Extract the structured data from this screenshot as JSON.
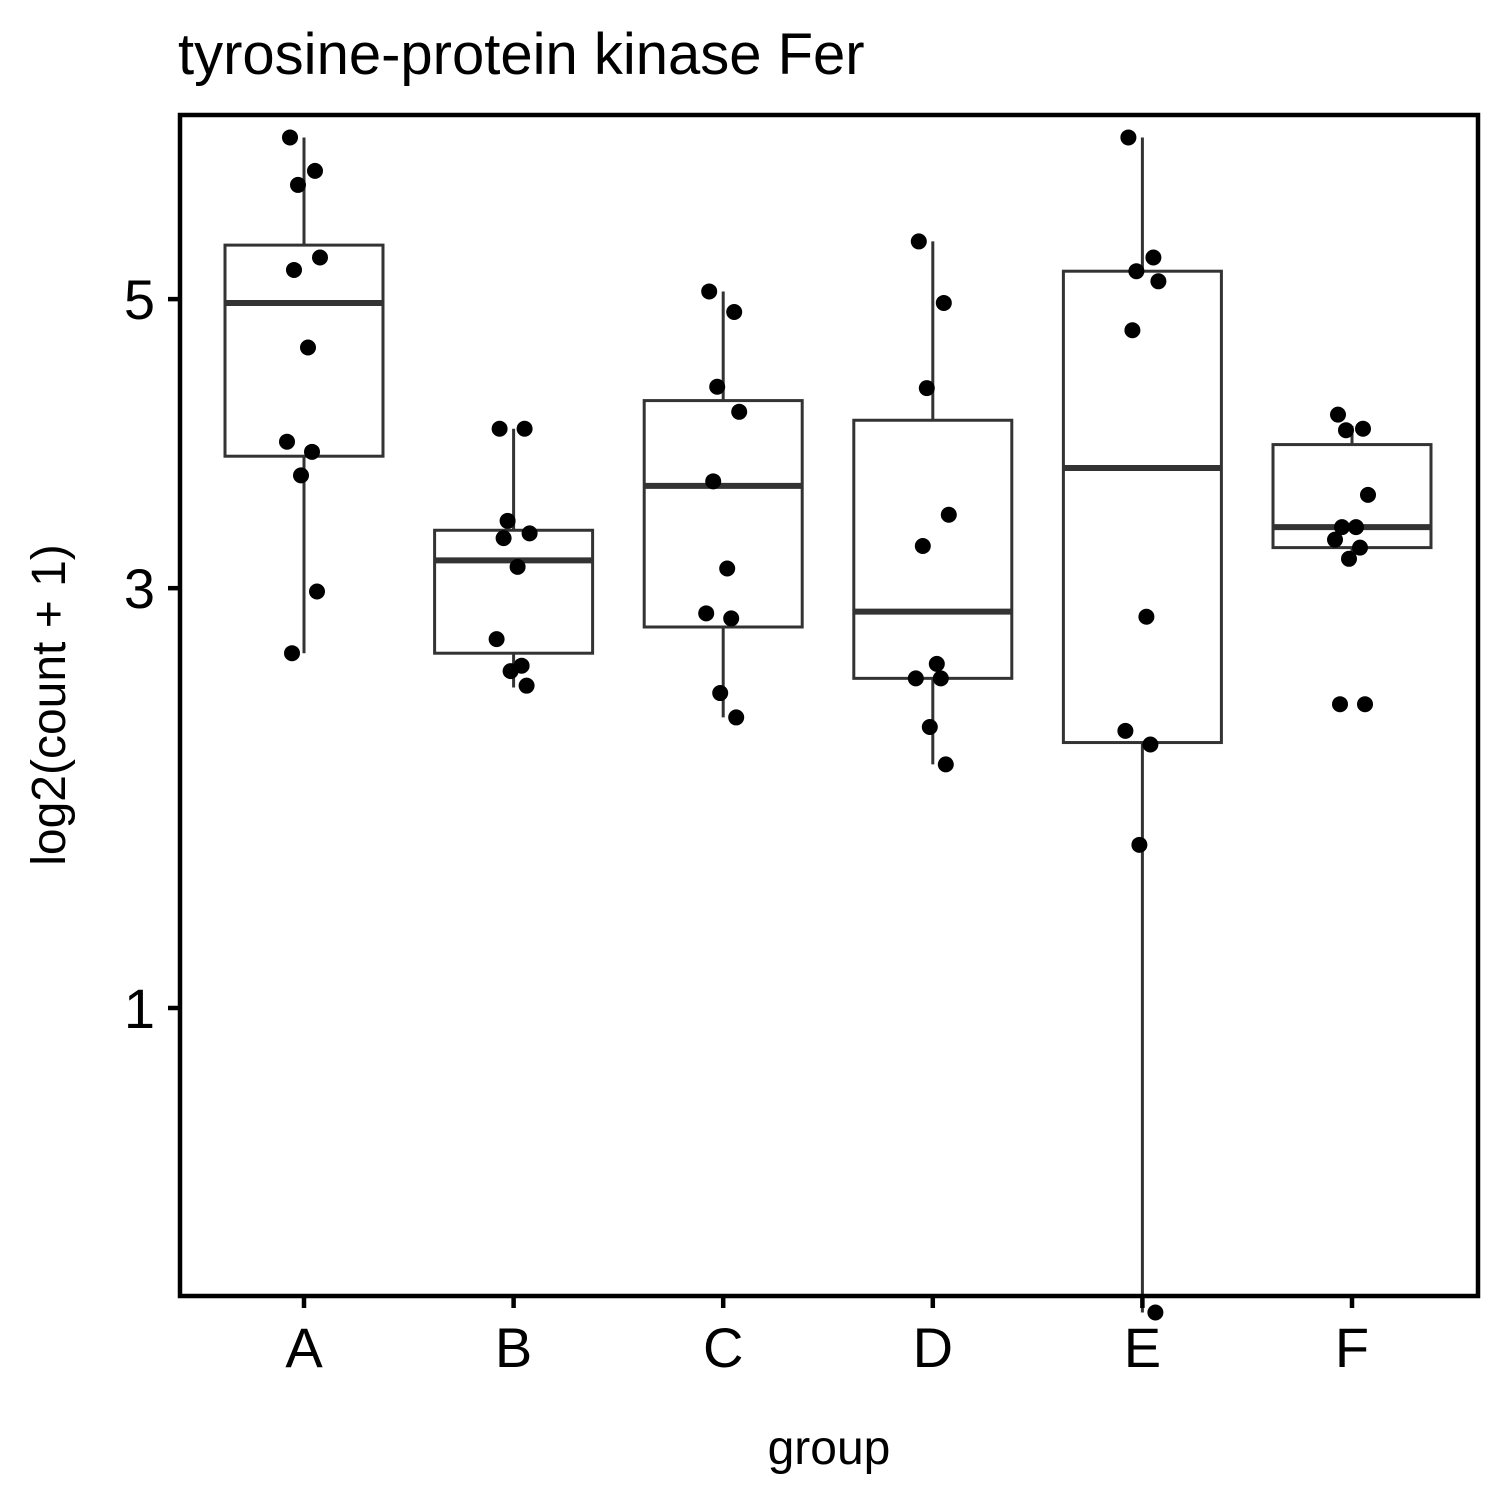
{
  "chart_data": {
    "type": "box",
    "title": "tyrosine-protein kinase Fer",
    "xlabel": "group",
    "ylabel": "log2(count + 1)",
    "y_scale": "sqrt",
    "ylim": [
      0.15,
      6.6
    ],
    "yticks": [
      1,
      3,
      5
    ],
    "categories": [
      "A",
      "B",
      "C",
      "D",
      "E",
      "F"
    ],
    "grid": false,
    "legend": "none",
    "boxes": [
      {
        "group": "A",
        "whisker_low": 2.62,
        "q1": 3.85,
        "median": 4.97,
        "q3": 5.43,
        "whisker_high": 6.34
      },
      {
        "group": "B",
        "whisker_low": 2.43,
        "q1": 2.62,
        "median": 3.17,
        "q3": 3.36,
        "whisker_high": 4.04
      },
      {
        "group": "C",
        "whisker_low": 2.27,
        "q1": 2.77,
        "median": 3.65,
        "q3": 4.24,
        "whisker_high": 5.06
      },
      {
        "group": "D",
        "whisker_low": 2.03,
        "q1": 2.48,
        "median": 2.86,
        "q3": 4.1,
        "whisker_high": 5.46
      },
      {
        "group": "E",
        "whisker_low": 0.22,
        "q1": 2.14,
        "median": 3.77,
        "q3": 5.22,
        "whisker_high": 6.34
      },
      {
        "group": "F",
        "whisker_low": 3.2,
        "q1": 3.25,
        "median": 3.38,
        "q3": 3.93,
        "whisker_high": 4.06
      }
    ],
    "points": [
      {
        "group": "A",
        "y": [
          6.34,
          6.05,
          5.93,
          5.33,
          5.23,
          4.63,
          3.95,
          3.88,
          3.72,
          2.98,
          2.62
        ]
      },
      {
        "group": "B",
        "y": [
          4.04,
          4.04,
          3.42,
          3.34,
          3.31,
          3.13,
          2.7,
          2.55,
          2.52,
          2.44
        ]
      },
      {
        "group": "C",
        "y": [
          5.06,
          4.9,
          4.34,
          4.16,
          3.68,
          3.12,
          2.85,
          2.82,
          2.4,
          2.27
        ]
      },
      {
        "group": "D",
        "y": [
          5.46,
          4.97,
          4.33,
          3.46,
          3.26,
          2.56,
          2.48,
          2.48,
          2.22,
          2.03
        ]
      },
      {
        "group": "E",
        "y": [
          6.34,
          5.33,
          5.22,
          5.14,
          4.76,
          2.83,
          2.2,
          2.13,
          1.65,
          0.22
        ]
      },
      {
        "group": "F",
        "y": [
          4.14,
          4.04,
          4.03,
          3.59,
          3.38,
          3.38,
          3.3,
          3.25,
          3.18,
          2.34,
          2.34
        ]
      }
    ]
  }
}
